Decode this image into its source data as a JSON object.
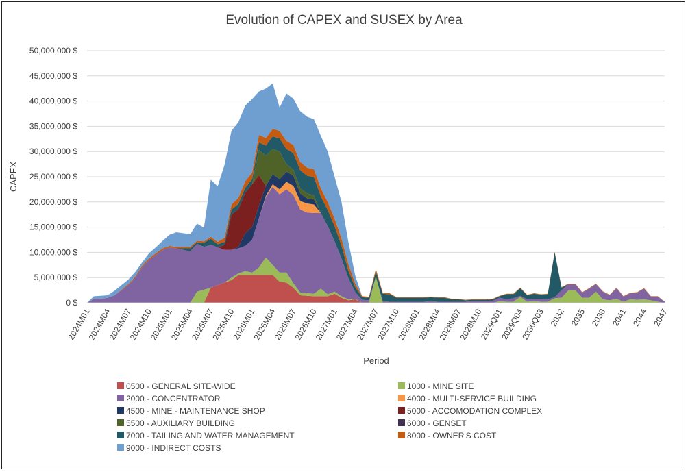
{
  "chart_data": {
    "type": "area",
    "stacked": true,
    "title": "Evolution of CAPEX and SUSEX by Area",
    "xlabel": "Period",
    "ylabel": "CAPEX",
    "ylim": [
      0,
      50000000
    ],
    "yticks": [
      "0 $",
      "5,000,000 $",
      "10,000,000 $",
      "15,000,000 $",
      "20,000,000 $",
      "25,000,000 $",
      "30,000,000 $",
      "35,000,000 $",
      "40,000,000 $",
      "45,000,000 $",
      "50,000,000 $"
    ],
    "ytick_values": [
      0,
      5000000,
      10000000,
      15000000,
      20000000,
      25000000,
      30000000,
      35000000,
      40000000,
      45000000,
      50000000
    ],
    "x": [
      "2024M01",
      "2024M02",
      "2024M03",
      "2024M04",
      "2024M05",
      "2024M06",
      "2024M07",
      "2024M08",
      "2024M09",
      "2024M10",
      "2024M11",
      "2024M12",
      "2025M01",
      "2025M02",
      "2025M03",
      "2025M04",
      "2025M05",
      "2025M06",
      "2025M07",
      "2025M08",
      "2025M09",
      "2025M10",
      "2025M11",
      "2025M12",
      "2026M01",
      "2026M02",
      "2026M03",
      "2026M04",
      "2026M05",
      "2026M06",
      "2026M07",
      "2026M08",
      "2026M09",
      "2026M10",
      "2026M11",
      "2026M12",
      "2027M01",
      "2027M02",
      "2027M03",
      "2027M04",
      "2027M05",
      "2027M06",
      "2027M07",
      "2027M08",
      "2027M09",
      "2027M10",
      "2027M11",
      "2027M12",
      "2028M01",
      "2028M02",
      "2028M03",
      "2028M04",
      "2028M05",
      "2028M06",
      "2028M07",
      "2028M08",
      "2028M09",
      "2028M10",
      "2028M11",
      "2028M12",
      "2029Q01",
      "2029Q02",
      "2029Q03",
      "2029Q04",
      "2030Q01",
      "2030Q02",
      "2030Q03",
      "2030Q04",
      "2031",
      "2032",
      "2033",
      "2034",
      "2035",
      "2036",
      "2037",
      "2038",
      "2039",
      "2040",
      "2041",
      "2042",
      "2043",
      "2044",
      "2045",
      "2046",
      "2047"
    ],
    "xtick_labels": [
      "2024M01",
      "2024M04",
      "2024M07",
      "2024M10",
      "2025M01",
      "2025M04",
      "2025M07",
      "2025M10",
      "2026M01",
      "2026M04",
      "2026M07",
      "2026M10",
      "2027M01",
      "2027M04",
      "2027M07",
      "2027M10",
      "2028M01",
      "2028M04",
      "2028M07",
      "2028M10",
      "2029Q01",
      "2029Q04",
      "2030Q03",
      "2032",
      "2035",
      "2038",
      "2041",
      "2044",
      "2047"
    ],
    "legend_position": "bottom",
    "series": [
      {
        "name": "0500 - GENERAL SITE-WIDE",
        "color": "#c0504d",
        "values": [
          0,
          0,
          0,
          0,
          0,
          0,
          0,
          0,
          0,
          0,
          0,
          0,
          0,
          0,
          0,
          0,
          0,
          0,
          3000000,
          3500000,
          4000000,
          4500000,
          5500000,
          5500000,
          5500000,
          5500000,
          5500000,
          5500000,
          4200000,
          4000000,
          3000000,
          1500000,
          1400000,
          1300000,
          1300000,
          1300000,
          1800000,
          1000000,
          500000,
          700000,
          0,
          0,
          0,
          0,
          0,
          0,
          0,
          0,
          0,
          0,
          0,
          0,
          0,
          0,
          0,
          0,
          0,
          0,
          0,
          0,
          0,
          0,
          0,
          0,
          0,
          0,
          0,
          0,
          0,
          0,
          0,
          0,
          0,
          0,
          0,
          0,
          0,
          0,
          0,
          0,
          0,
          0,
          0,
          0,
          0
        ]
      },
      {
        "name": "1000 - MINE SITE",
        "color": "#9bbb59",
        "values": [
          0,
          0,
          0,
          0,
          0,
          0,
          0,
          0,
          0,
          0,
          0,
          0,
          0,
          0,
          0,
          0,
          2200000,
          2600000,
          0,
          0,
          0,
          500000,
          300000,
          800000,
          500000,
          1500000,
          3500000,
          2000000,
          1800000,
          2000000,
          900000,
          500000,
          500000,
          500000,
          1500000,
          400000,
          400000,
          300000,
          200000,
          100000,
          0,
          0,
          5200000,
          0,
          0,
          0,
          0,
          0,
          0,
          0,
          0,
          0,
          0,
          0,
          0,
          0,
          0,
          0,
          0,
          0,
          300000,
          200000,
          200000,
          1200000,
          200000,
          300000,
          200000,
          200000,
          900000,
          1000000,
          2500000,
          2500000,
          1000000,
          1000000,
          2200000,
          700000,
          500000,
          800000,
          200000,
          700000,
          600000,
          700000,
          500000,
          200000,
          0
        ]
      },
      {
        "name": "2000 - CONCENTRATOR",
        "color": "#8064a2",
        "values": [
          0,
          800000,
          800000,
          1000000,
          1500000,
          2500000,
          3500000,
          5000000,
          7000000,
          8500000,
          9500000,
          10500000,
          11000000,
          10800000,
          10500000,
          10200000,
          9500000,
          8500000,
          8500000,
          7500000,
          6500000,
          5500000,
          5000000,
          5000000,
          6500000,
          9800000,
          12000000,
          15500000,
          15500000,
          16500000,
          17500000,
          16500000,
          16000000,
          16000000,
          15000000,
          13500000,
          10000000,
          7500000,
          4200000,
          1300000,
          600000,
          500000,
          0,
          300000,
          200000,
          200000,
          200000,
          200000,
          200000,
          200000,
          300000,
          200000,
          200000,
          200000,
          200000,
          200000,
          300000,
          300000,
          300000,
          400000,
          700000,
          500000,
          700000,
          200000,
          500000,
          500000,
          600000,
          500000,
          200000,
          1500000,
          1200000,
          1200000,
          1000000,
          1800000,
          1500000,
          1500000,
          1000000,
          2100000,
          1000000,
          1200000,
          1400000,
          2100000,
          700000,
          1000000,
          200000
        ]
      },
      {
        "name": "4000 - MULTI-SERVICE BUILDING",
        "color": "#f79646",
        "values": [
          0,
          0,
          0,
          0,
          0,
          0,
          0,
          0,
          0,
          0,
          0,
          0,
          0,
          0,
          0,
          0,
          0,
          0,
          0,
          0,
          0,
          0,
          0,
          0,
          0,
          0,
          200000,
          500000,
          1000000,
          1500000,
          1800000,
          1700000,
          1800000,
          1700000,
          0,
          0,
          0,
          0,
          0,
          0,
          0,
          0,
          0,
          0,
          0,
          0,
          0,
          0,
          0,
          0,
          0,
          0,
          0,
          0,
          0,
          0,
          0,
          0,
          0,
          0,
          0,
          0,
          0,
          0,
          0,
          0,
          0,
          0,
          0,
          0,
          0,
          0,
          0,
          0,
          0,
          0,
          0,
          0,
          0,
          0,
          0,
          0,
          0,
          0,
          0
        ]
      },
      {
        "name": "4500 - MINE - MAINTENANCE SHOP",
        "color": "#1f3864",
        "values": [
          0,
          0,
          0,
          0,
          0,
          0,
          0,
          0,
          0,
          0,
          0,
          0,
          0,
          0,
          0,
          0,
          0,
          0,
          0,
          0,
          0,
          0,
          300000,
          2500000,
          2500000,
          2500000,
          2000000,
          2000000,
          2000000,
          2000000,
          2000000,
          1500000,
          1000000,
          1000000,
          0,
          0,
          0,
          0,
          0,
          0,
          0,
          0,
          0,
          0,
          0,
          0,
          0,
          0,
          0,
          0,
          0,
          0,
          0,
          0,
          0,
          0,
          0,
          0,
          0,
          0,
          0,
          0,
          0,
          0,
          0,
          0,
          0,
          0,
          0,
          0,
          0,
          0,
          0,
          0,
          0,
          0,
          0,
          0,
          0,
          0,
          0,
          0,
          0,
          0,
          0
        ]
      },
      {
        "name": "5000 - ACCOMODATION COMPLEX",
        "color": "#7b1f1f",
        "values": [
          0,
          0,
          0,
          0,
          0,
          0,
          0,
          0,
          0,
          0,
          0,
          0,
          0,
          0,
          0,
          0,
          0,
          0,
          0,
          0,
          1000000,
          7000000,
          7500000,
          8000000,
          8500000,
          6000000,
          0,
          0,
          0,
          0,
          0,
          0,
          0,
          0,
          0,
          0,
          0,
          0,
          0,
          0,
          0,
          0,
          0,
          0,
          0,
          0,
          0,
          0,
          0,
          0,
          0,
          0,
          0,
          0,
          0,
          0,
          0,
          0,
          0,
          0,
          0,
          0,
          0,
          0,
          0,
          0,
          0,
          0,
          0,
          0,
          0,
          0,
          0,
          0,
          0,
          0,
          0,
          0,
          0,
          0,
          0,
          0,
          0,
          0,
          0
        ]
      },
      {
        "name": "5500 - AUXILIARY BUILDING",
        "color": "#4f6228",
        "values": [
          0,
          0,
          0,
          0,
          0,
          0,
          0,
          0,
          0,
          0,
          0,
          0,
          0,
          0,
          0,
          0,
          0,
          0,
          0,
          0,
          0,
          0,
          0,
          0,
          0,
          5000000,
          6000000,
          5000000,
          5500000,
          1500000,
          1200000,
          1000000,
          1000000,
          800000,
          0,
          0,
          0,
          0,
          0,
          0,
          0,
          0,
          0,
          0,
          0,
          0,
          0,
          0,
          0,
          0,
          0,
          0,
          0,
          0,
          0,
          0,
          0,
          0,
          0,
          0,
          0,
          0,
          0,
          0,
          0,
          0,
          0,
          0,
          0,
          0,
          0,
          0,
          0,
          0,
          0,
          0,
          0,
          0,
          0,
          0,
          0,
          0,
          0,
          0,
          0
        ]
      },
      {
        "name": "6000 - GENSET",
        "color": "#403152",
        "values": [
          0,
          0,
          0,
          0,
          0,
          0,
          0,
          0,
          0,
          0,
          0,
          0,
          0,
          0,
          0,
          0,
          0,
          0,
          0,
          0,
          0,
          0,
          0,
          0,
          0,
          0,
          0,
          0,
          0,
          0,
          0,
          0,
          0,
          0,
          0,
          0,
          0,
          0,
          0,
          0,
          0,
          0,
          0,
          0,
          0,
          0,
          0,
          0,
          0,
          0,
          0,
          0,
          0,
          0,
          0,
          0,
          0,
          0,
          0,
          0,
          0,
          0,
          0,
          0,
          0,
          0,
          0,
          0,
          0,
          0,
          0,
          0,
          0,
          0,
          0,
          0,
          0,
          0,
          0,
          0,
          0,
          0,
          0,
          0,
          0
        ]
      },
      {
        "name": "7000 - TAILING AND WATER MANAGEMENT",
        "color": "#215967",
        "values": [
          0,
          0,
          0,
          0,
          0,
          0,
          0,
          0,
          0,
          0,
          0,
          0,
          0,
          0,
          300000,
          600000,
          300000,
          800000,
          1200000,
          600000,
          600000,
          1000000,
          1000000,
          1000000,
          1000000,
          1500000,
          2000000,
          2500000,
          2600000,
          3000000,
          3300000,
          3600000,
          3500000,
          3600000,
          3300000,
          3200000,
          3000000,
          2600000,
          1500000,
          1000000,
          500000,
          500000,
          1000000,
          1500000,
          1500000,
          800000,
          800000,
          800000,
          800000,
          800000,
          800000,
          800000,
          800000,
          500000,
          500000,
          300000,
          300000,
          300000,
          300000,
          300000,
          300000,
          1000000,
          800000,
          1500000,
          800000,
          1000000,
          800000,
          1000000,
          8900000,
          500000,
          0,
          0,
          0,
          0,
          0,
          0,
          0,
          0,
          0,
          0,
          0,
          0,
          0,
          0,
          0
        ]
      },
      {
        "name": "8000 - OWNER'S COST",
        "color": "#c55a11",
        "values": [
          0,
          0,
          0,
          0,
          0,
          100000,
          200000,
          200000,
          300000,
          300000,
          300000,
          300000,
          300000,
          300000,
          300000,
          300000,
          300000,
          300000,
          400000,
          500000,
          800000,
          1000000,
          1200000,
          1300000,
          1300000,
          1500000,
          1500000,
          1500000,
          1500000,
          1600000,
          1600000,
          1600000,
          1600000,
          1600000,
          1600000,
          1600000,
          1500000,
          1400000,
          1300000,
          700000,
          200000,
          200000,
          500000,
          200000,
          200000,
          100000,
          100000,
          100000,
          100000,
          100000,
          100000,
          100000,
          100000,
          100000,
          100000,
          100000,
          100000,
          100000,
          100000,
          100000,
          100000,
          100000,
          100000,
          100000,
          100000,
          100000,
          100000,
          100000,
          100000,
          100000,
          100000,
          100000,
          100000,
          100000,
          100000,
          100000,
          100000,
          100000,
          100000,
          100000,
          100000,
          100000,
          100000,
          100000,
          0
        ]
      },
      {
        "name": "9000 - INDIRECT COSTS",
        "color": "#6f9ed1",
        "values": [
          0,
          500000,
          600000,
          500000,
          900000,
          900000,
          900000,
          900000,
          700000,
          1000000,
          1200000,
          1500000,
          2200000,
          2900000,
          2700000,
          2500000,
          3400000,
          2700000,
          11300000,
          11000000,
          14500000,
          14600000,
          15000000,
          15000000,
          14600000,
          8600000,
          9800000,
          9000000,
          4600000,
          9400000,
          9200000,
          10100000,
          10100000,
          9900000,
          10400000,
          10000000,
          8300000,
          7200000,
          4400000,
          1600000,
          0,
          0,
          0,
          0,
          0,
          0,
          0,
          0,
          0,
          0,
          0,
          0,
          0,
          0,
          0,
          0,
          0,
          0,
          0,
          0,
          0,
          0,
          0,
          0,
          0,
          0,
          0,
          0,
          0,
          0,
          0,
          0,
          0,
          0,
          0,
          0,
          0,
          0,
          0,
          0,
          0,
          0,
          0,
          0,
          0
        ]
      }
    ]
  }
}
